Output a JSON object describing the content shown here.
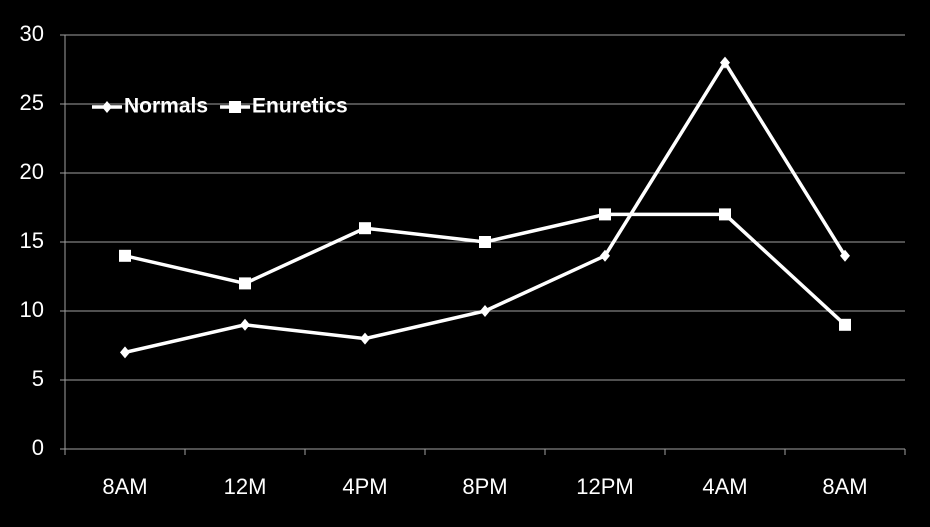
{
  "chart_data": {
    "type": "line",
    "categories": [
      "8AM",
      "12M",
      "4PM",
      "8PM",
      "12PM",
      "4AM",
      "8AM"
    ],
    "series": [
      {
        "name": "Normals",
        "color": "#ffffff",
        "marker": "diamond",
        "values": [
          7,
          9,
          8,
          10,
          14,
          28,
          14
        ]
      },
      {
        "name": "Enuretics",
        "color": "#ffffff",
        "marker": "square",
        "values": [
          14,
          12,
          16,
          15,
          17,
          17,
          9
        ]
      }
    ],
    "ylim": [
      0,
      30
    ],
    "yticks": [
      0,
      5,
      10,
      15,
      20,
      25,
      30
    ],
    "grid": true,
    "legend": "top-left"
  }
}
